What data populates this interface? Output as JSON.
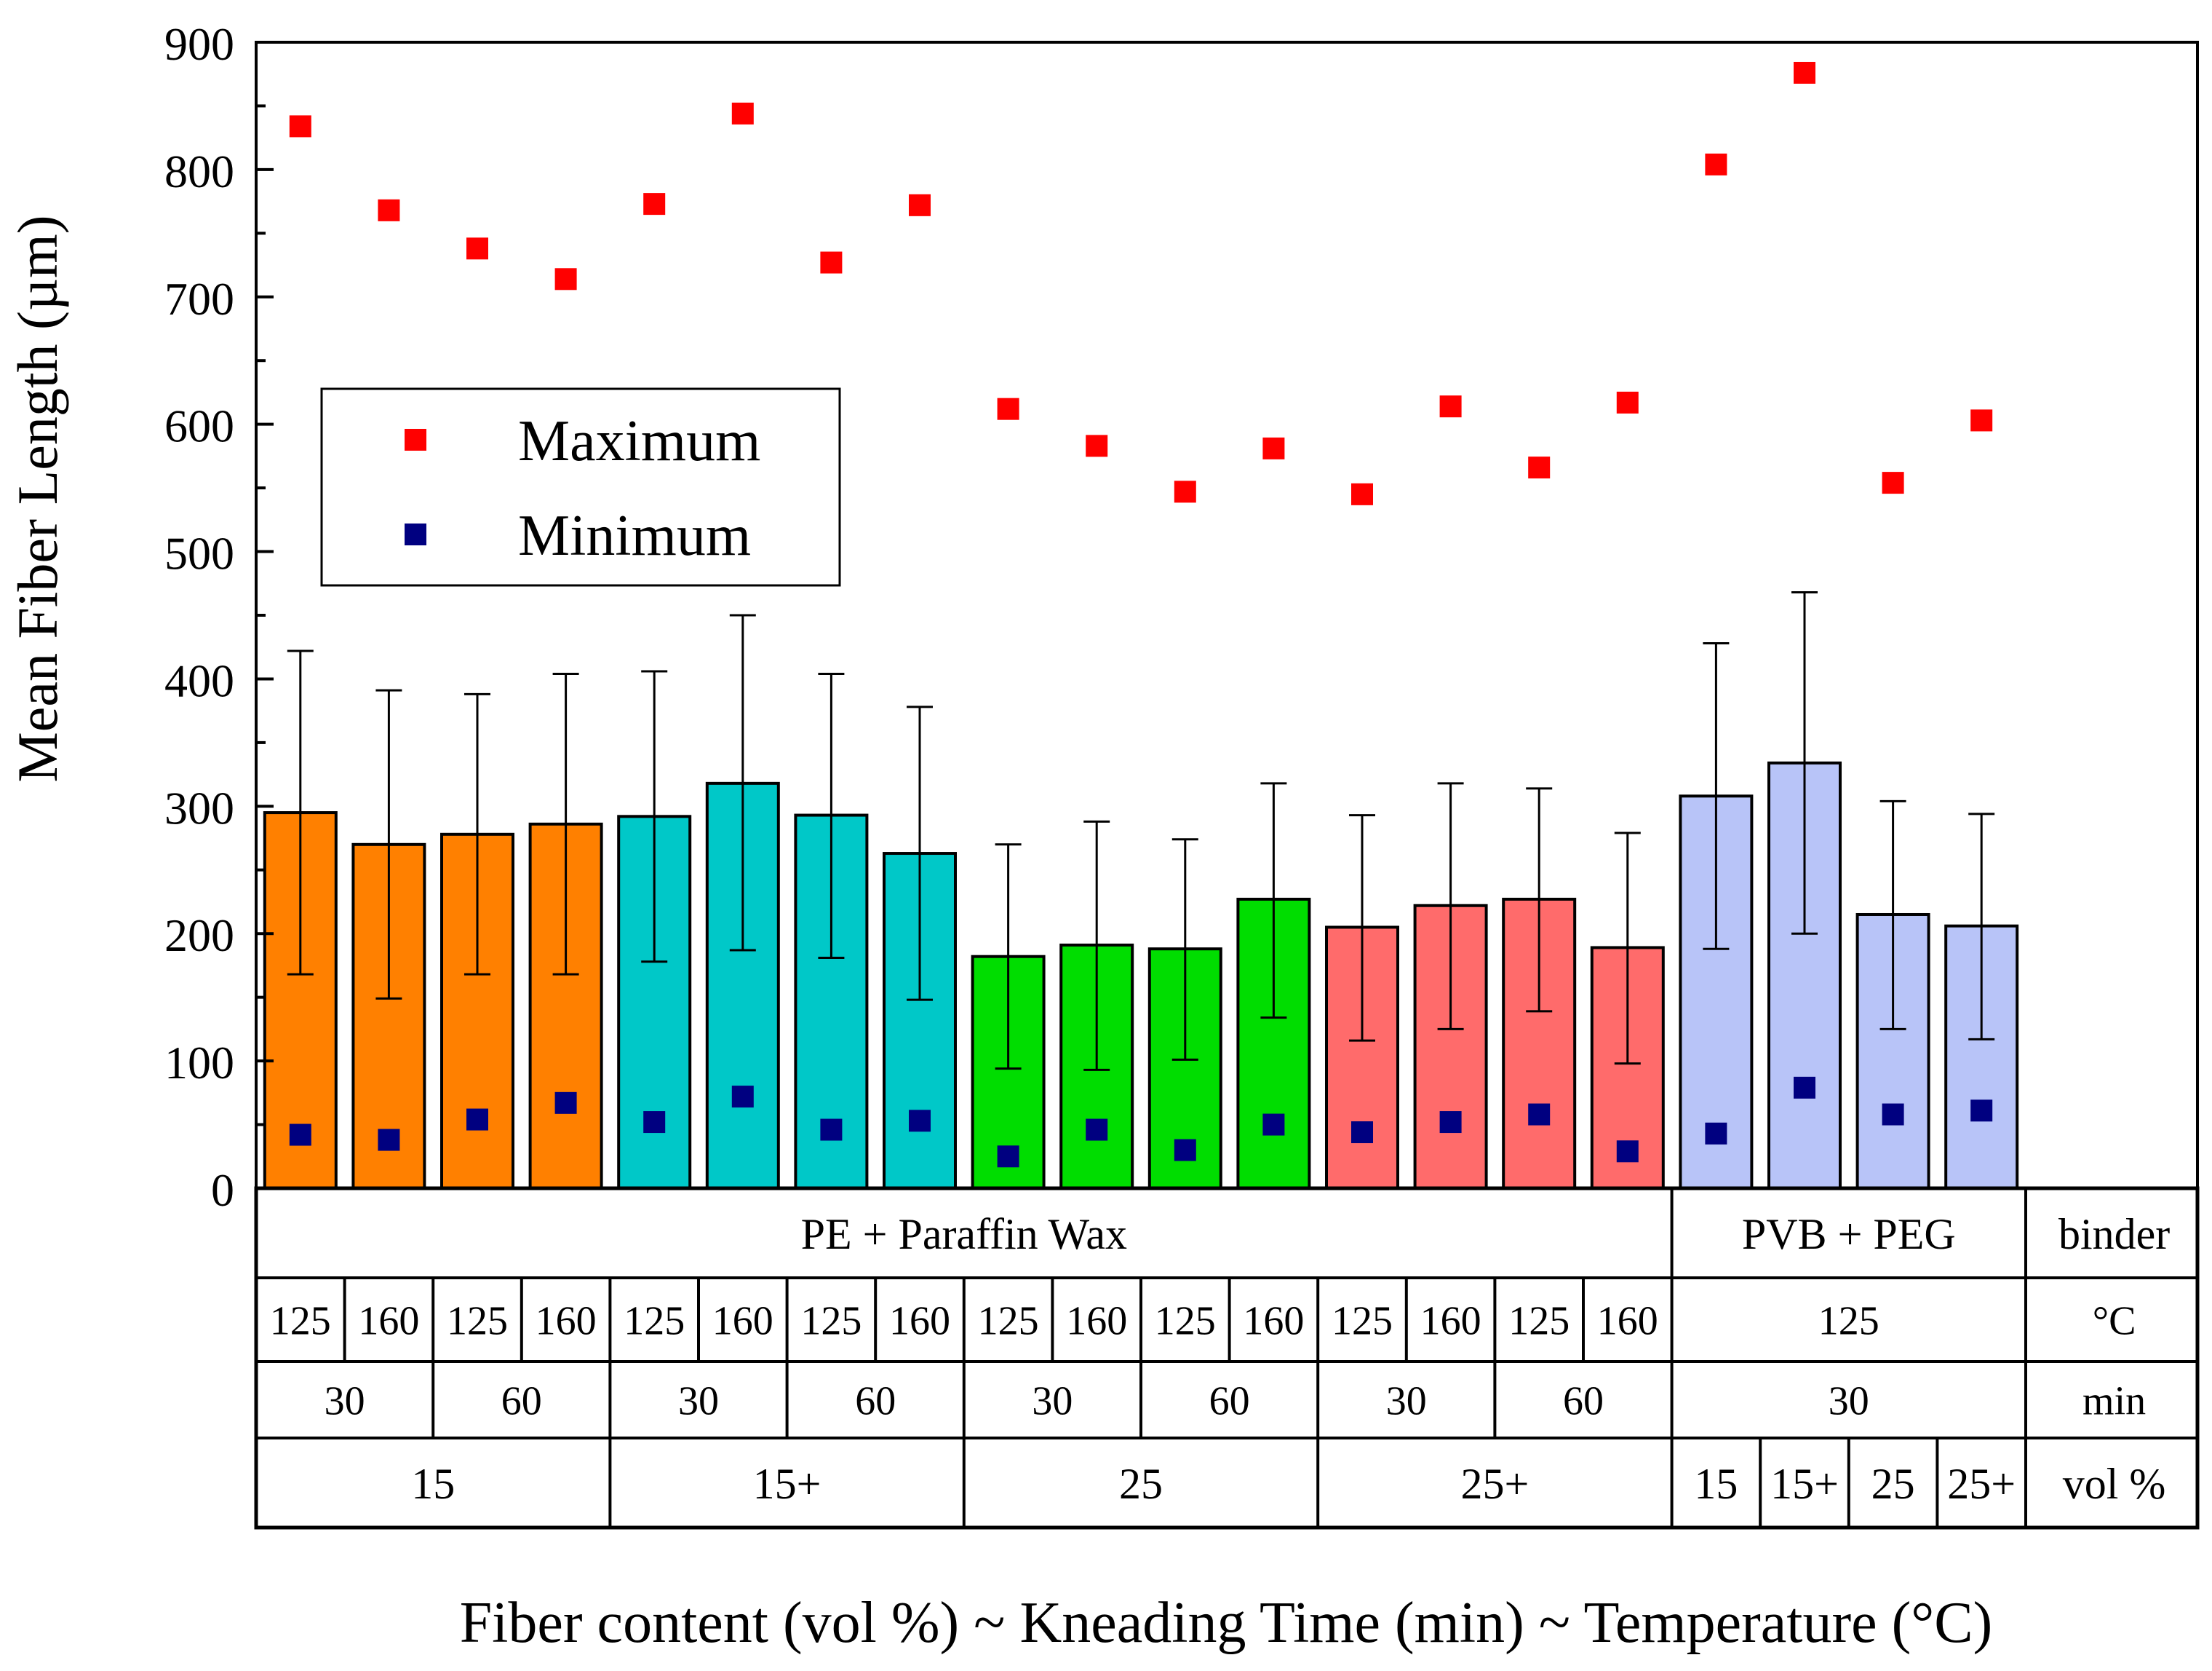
{
  "chart_data": {
    "type": "bar",
    "ylabel": "Mean Fiber Length (µm)",
    "xlabel": "Fiber content (vol %) ~ Kneading Time (min) ~ Temperature (°C)",
    "ylim": [
      0,
      900
    ],
    "yticks": [
      "0",
      "100",
      "200",
      "300",
      "400",
      "500",
      "600",
      "700",
      "800",
      "900"
    ],
    "grid": false,
    "legend": {
      "position": "upper-left",
      "entries": [
        {
          "label": "Maximum",
          "color": "#ff0000"
        },
        {
          "label": "Minimum",
          "color": "#000080"
        }
      ]
    },
    "bar_colors": [
      "#ff8000",
      "#00c8c8",
      "#00dd00",
      "#ff6b6b",
      "#b8c4f8"
    ],
    "bars": [
      {
        "mean": 295,
        "err_low": 168,
        "err_high": 422,
        "max": 834,
        "min": 42,
        "group": 0
      },
      {
        "mean": 270,
        "err_low": 149,
        "err_high": 391,
        "max": 768,
        "min": 38,
        "group": 0
      },
      {
        "mean": 278,
        "err_low": 168,
        "err_high": 388,
        "max": 738,
        "min": 54,
        "group": 0
      },
      {
        "mean": 286,
        "err_low": 168,
        "err_high": 404,
        "max": 714,
        "min": 67,
        "group": 0
      },
      {
        "mean": 292,
        "err_low": 178,
        "err_high": 406,
        "max": 773,
        "min": 52,
        "group": 1
      },
      {
        "mean": 318,
        "err_low": 187,
        "err_high": 450,
        "max": 844,
        "min": 72,
        "group": 1
      },
      {
        "mean": 293,
        "err_low": 181,
        "err_high": 404,
        "max": 727,
        "min": 46,
        "group": 1
      },
      {
        "mean": 263,
        "err_low": 148,
        "err_high": 378,
        "max": 772,
        "min": 53,
        "group": 1
      },
      {
        "mean": 182,
        "err_low": 94,
        "err_high": 270,
        "max": 612,
        "min": 25,
        "group": 2
      },
      {
        "mean": 191,
        "err_low": 93,
        "err_high": 288,
        "max": 583,
        "min": 46,
        "group": 2
      },
      {
        "mean": 188,
        "err_low": 101,
        "err_high": 274,
        "max": 547,
        "min": 30,
        "group": 2
      },
      {
        "mean": 227,
        "err_low": 134,
        "err_high": 318,
        "max": 581,
        "min": 50,
        "group": 2
      },
      {
        "mean": 205,
        "err_low": 116,
        "err_high": 293,
        "max": 545,
        "min": 44,
        "group": 3
      },
      {
        "mean": 222,
        "err_low": 125,
        "err_high": 318,
        "max": 614,
        "min": 52,
        "group": 3
      },
      {
        "mean": 227,
        "err_low": 139,
        "err_high": 314,
        "max": 566,
        "min": 58,
        "group": 3
      },
      {
        "mean": 189,
        "err_low": 98,
        "err_high": 279,
        "max": 617,
        "min": 29,
        "group": 3
      },
      {
        "mean": 308,
        "err_low": 188,
        "err_high": 428,
        "max": 804,
        "min": 43,
        "group": 4
      },
      {
        "mean": 334,
        "err_low": 200,
        "err_high": 468,
        "max": 876,
        "min": 79,
        "group": 4
      },
      {
        "mean": 215,
        "err_low": 125,
        "err_high": 304,
        "max": 554,
        "min": 58,
        "group": 4
      },
      {
        "mean": 206,
        "err_low": 117,
        "err_high": 294,
        "max": 603,
        "min": 61,
        "group": 4
      }
    ],
    "table": {
      "binder": [
        {
          "label": "PE + Paraffin Wax",
          "span": 16
        },
        {
          "label": "PVB + PEG",
          "span": 4
        },
        {
          "label": "binder",
          "span": 2
        }
      ],
      "temperature": [
        {
          "label": "125",
          "span": 1
        },
        {
          "label": "160",
          "span": 1
        },
        {
          "label": "125",
          "span": 1
        },
        {
          "label": "160",
          "span": 1
        },
        {
          "label": "125",
          "span": 1
        },
        {
          "label": "160",
          "span": 1
        },
        {
          "label": "125",
          "span": 1
        },
        {
          "label": "160",
          "span": 1
        },
        {
          "label": "125",
          "span": 1
        },
        {
          "label": "160",
          "span": 1
        },
        {
          "label": "125",
          "span": 1
        },
        {
          "label": "160",
          "span": 1
        },
        {
          "label": "125",
          "span": 1
        },
        {
          "label": "160",
          "span": 1
        },
        {
          "label": "125",
          "span": 1
        },
        {
          "label": "160",
          "span": 1
        },
        {
          "label": "125",
          "span": 4
        },
        {
          "label": "°C",
          "span": 2
        }
      ],
      "time": [
        {
          "label": "30",
          "span": 2
        },
        {
          "label": "60",
          "span": 2
        },
        {
          "label": "30",
          "span": 2
        },
        {
          "label": "60",
          "span": 2
        },
        {
          "label": "30",
          "span": 2
        },
        {
          "label": "60",
          "span": 2
        },
        {
          "label": "30",
          "span": 2
        },
        {
          "label": "60",
          "span": 2
        },
        {
          "label": "30",
          "span": 4
        },
        {
          "label": "min",
          "span": 2
        }
      ],
      "content": [
        {
          "label": "15",
          "span": 4
        },
        {
          "label": "15+",
          "span": 4
        },
        {
          "label": "25",
          "span": 4
        },
        {
          "label": "25+",
          "span": 4
        },
        {
          "label": "15",
          "span": 1
        },
        {
          "label": "15+",
          "span": 1
        },
        {
          "label": "25",
          "span": 1
        },
        {
          "label": "25+",
          "span": 1
        },
        {
          "label": "vol %",
          "span": 2
        }
      ]
    }
  }
}
